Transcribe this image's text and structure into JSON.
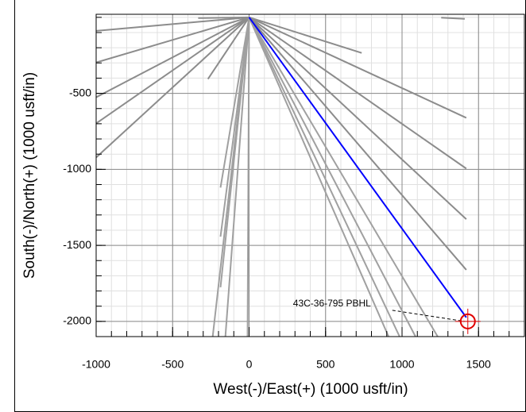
{
  "chart_data": {
    "type": "line",
    "x_label": "West(-)/East(+) (1000 usft/in)",
    "y_label": "South(-)/North(+) (1000 usft/in)",
    "xlim": [
      -1000,
      1800
    ],
    "ylim": [
      -2100,
      20
    ],
    "xticks": [
      -1000,
      -500,
      0,
      500,
      1000,
      1500
    ],
    "yticks": [
      -500,
      -1000,
      -1500,
      -2000
    ],
    "grid": true,
    "minor_grid": 100,
    "series": [
      {
        "color": "#8c8c8c",
        "x": [
          0,
          -1000
        ],
        "values": [
          0,
          -89
        ]
      },
      {
        "color": "#8c8c8c",
        "x": [
          0,
          -1000
        ],
        "values": [
          0,
          -297
        ]
      },
      {
        "color": "#8c8c8c",
        "x": [
          0,
          -1000
        ],
        "values": [
          0,
          -526
        ]
      },
      {
        "color": "#8c8c8c",
        "x": [
          0,
          -1000
        ],
        "values": [
          0,
          -698
        ]
      },
      {
        "color": "#8c8c8c",
        "x": [
          0,
          -1000
        ],
        "values": [
          0,
          -922
        ]
      },
      {
        "color": "#8c8c8c",
        "x": [
          0,
          -333
        ],
        "values": [
          0,
          -5
        ]
      },
      {
        "color": "#8c8c8c",
        "x": [
          0,
          -269
        ],
        "values": [
          0,
          -406
        ]
      },
      {
        "color": "#a0a0a0",
        "x": [
          0,
          -187
        ],
        "values": [
          0,
          -1120
        ]
      },
      {
        "color": "#a0a0a0",
        "x": [
          0,
          -187
        ],
        "values": [
          0,
          -1443
        ]
      },
      {
        "color": "#a0a0a0",
        "x": [
          0,
          -187
        ],
        "values": [
          0,
          -1776
        ]
      },
      {
        "color": "#a0a0a0",
        "x": [
          0,
          -238
        ],
        "values": [
          0,
          -2100
        ]
      },
      {
        "color": "#a0a0a0",
        "x": [
          0,
          -155
        ],
        "values": [
          0,
          -2100
        ]
      },
      {
        "color": "#a0a0a0",
        "x": [
          0,
          -10
        ],
        "values": [
          0,
          -2100
        ]
      },
      {
        "color": "#8c8c8c",
        "x": [
          0,
          736
        ],
        "values": [
          0,
          -234
        ]
      },
      {
        "color": "#8c8c8c",
        "x": [
          0,
          1420
        ],
        "values": [
          0,
          -661
        ]
      },
      {
        "color": "#8c8c8c",
        "x": [
          0,
          1420
        ],
        "values": [
          0,
          -995
        ]
      },
      {
        "color": "#8c8c8c",
        "x": [
          0,
          1420
        ],
        "values": [
          0,
          -1328
        ]
      },
      {
        "color": "#8c8c8c",
        "x": [
          0,
          1420
        ],
        "values": [
          0,
          -1661
        ]
      },
      {
        "color": "#a0a0a0",
        "x": [
          0,
          912
        ],
        "values": [
          0,
          -2100
        ]
      },
      {
        "color": "#a0a0a0",
        "x": [
          0,
          984
        ],
        "values": [
          0,
          -2100
        ]
      },
      {
        "color": "#a0a0a0",
        "x": [
          0,
          1088
        ],
        "values": [
          0,
          -2100
        ]
      },
      {
        "color": "#a0a0a0",
        "x": [
          0,
          1233
        ],
        "values": [
          0,
          -2100
        ]
      },
      {
        "color": "#8c8c8c",
        "x": [
          1256,
          1410
        ],
        "values": [
          -2,
          -10
        ]
      },
      {
        "color": "#0000ff",
        "x": [
          0,
          1420
        ],
        "values": [
          0,
          -1974
        ]
      }
    ],
    "target": {
      "label": "43C-36-795 PBHL",
      "x": 1430,
      "y": -2000,
      "color": "#e00000"
    }
  }
}
